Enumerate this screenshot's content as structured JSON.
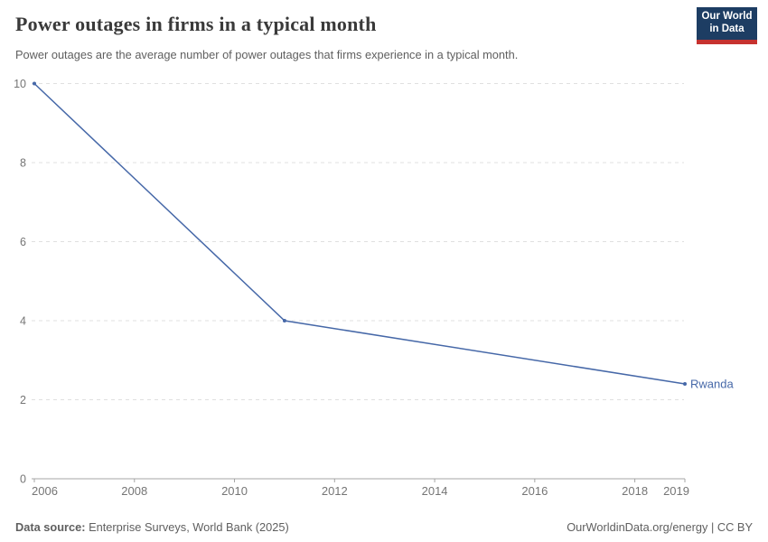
{
  "chart_data": {
    "type": "line",
    "title": "Power outages in firms in a typical month",
    "subtitle": "Power outages are the average number of power outages that firms experience in a typical month.",
    "xlabel": "",
    "ylabel": "",
    "xlim": [
      2006,
      2019
    ],
    "ylim": [
      0,
      10
    ],
    "x_ticks": [
      2006,
      2008,
      2010,
      2012,
      2014,
      2016,
      2018,
      2019
    ],
    "y_ticks": [
      0,
      2,
      4,
      6,
      8,
      10
    ],
    "grid": "horizontal-dashed",
    "legend_position": "end-of-line-label",
    "series": [
      {
        "name": "Rwanda",
        "color": "#4668a8",
        "points": [
          {
            "x": 2006,
            "y": 10
          },
          {
            "x": 2011,
            "y": 4
          },
          {
            "x": 2019,
            "y": 2.4
          }
        ]
      }
    ]
  },
  "logo": {
    "line1": "Our World",
    "line2": "in Data"
  },
  "footer": {
    "datasource_label": "Data source:",
    "datasource_value": "Enterprise Surveys, World Bank (2025)",
    "attribution": "OurWorldinData.org/energy | CC BY"
  },
  "colors": {
    "title": "#3a3a3a",
    "subtitle": "#5f5f5f",
    "tick_label": "#757575",
    "gridline": "#e0e0e0",
    "axis": "#a5a5a5",
    "line": "#4668a8",
    "logo_navy": "#1d3d63",
    "logo_red": "#c6322f"
  }
}
